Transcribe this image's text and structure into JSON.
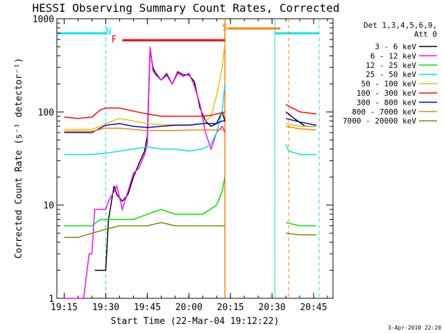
{
  "chart_data": {
    "type": "line",
    "title": "HESSI Observing Summary Count Rates, Corrected",
    "xlabel": "Start Time (22-Mar-04 19:12:22)",
    "ylabel": "Corrected Count Rate (s⁻¹ detector⁻¹)",
    "y_scale": "log",
    "ylim": [
      1,
      1000
    ],
    "xlim": [
      "19:12:22",
      "20:52:00"
    ],
    "x_tick_labels": [
      "19:15",
      "19:30",
      "19:45",
      "20:00",
      "20:15",
      "20:30",
      "20:45"
    ],
    "y_tick_labels": [
      "1",
      "10",
      "100",
      "1000"
    ],
    "legend_header": [
      "Det 1,3,4,5,6,9,",
      "Att 0"
    ],
    "legend_position": "right",
    "footer_date": "3-Apr-2010 22:20",
    "annotations": [
      {
        "text": "N",
        "x": "19:31",
        "color": "#00e5e5"
      },
      {
        "text": "F",
        "x": "19:33",
        "color": "#ff0000"
      },
      {
        "text": "S",
        "x": "20:13",
        "color": "#ff7f00"
      }
    ],
    "markers": {
      "night_solid": [
        [
          "19:12:22",
          "19:30"
        ],
        [
          "20:31",
          "20:47"
        ]
      ],
      "night_dashed": [
        "19:30",
        "20:47"
      ],
      "saa_solid": [
        [
          "20:14",
          "20:33"
        ]
      ],
      "saa_dashed": [
        "20:36"
      ],
      "flare_bar": [
        [
          "19:36",
          "20:13"
        ]
      ],
      "orange_vertical": [
        "20:13"
      ]
    },
    "series": [
      {
        "name": "3 - 6 keV",
        "color": "#000000",
        "x": [
          "19:26",
          "19:27",
          "19:28",
          "19:30",
          "19:31",
          "19:33",
          "19:34",
          "19:36",
          "19:38",
          "19:40",
          "19:42",
          "19:44",
          "19:45",
          "19:46",
          "19:47",
          "19:48",
          "19:50",
          "19:52",
          "19:54",
          "19:56",
          "19:58",
          "20:00",
          "20:02",
          "20:04",
          "20:06",
          "20:08",
          "20:10",
          "20:12",
          "20:13",
          "20:35",
          "20:38",
          "20:42",
          "20:46"
        ],
        "y": [
          2,
          2,
          2,
          2,
          7,
          16,
          13,
          11,
          13,
          20,
          28,
          38,
          55,
          480,
          300,
          260,
          220,
          250,
          200,
          270,
          250,
          250,
          210,
          110,
          80,
          70,
          75,
          100,
          80,
          100,
          85,
          70,
          70
        ]
      },
      {
        "name": "6 - 12 keV",
        "color": "#ff00ff",
        "x": [
          "19:15",
          "19:22",
          "19:24",
          "19:25",
          "19:26",
          "19:28",
          "19:30",
          "19:31",
          "19:33",
          "19:34",
          "19:36",
          "19:38",
          "19:40",
          "19:42",
          "19:44",
          "19:45",
          "19:46",
          "19:47",
          "19:48",
          "19:50",
          "19:52",
          "19:54",
          "19:56",
          "19:58",
          "20:00",
          "20:02",
          "20:04",
          "20:06",
          "20:08",
          "20:10",
          "20:12",
          "20:13"
        ],
        "y": [
          1,
          1,
          3,
          3,
          9,
          9,
          9,
          11,
          14,
          16,
          9,
          14,
          22,
          25,
          35,
          45,
          500,
          280,
          250,
          220,
          260,
          200,
          260,
          240,
          260,
          190,
          120,
          60,
          40,
          60,
          70,
          60
        ]
      },
      {
        "name": "12 - 25 keV",
        "color": "#00e000",
        "x": [
          "19:15",
          "19:20",
          "19:25",
          "19:28",
          "19:30",
          "19:32",
          "19:35",
          "19:40",
          "19:45",
          "19:50",
          "19:55",
          "20:00",
          "20:05",
          "20:10",
          "20:12",
          "20:13",
          "20:35",
          "20:40",
          "20:46"
        ],
        "y": [
          6,
          6,
          6,
          7,
          7,
          7,
          7,
          7,
          8,
          9,
          8,
          8,
          8,
          10,
          14,
          20,
          6.5,
          6,
          6
        ]
      },
      {
        "name": "25 - 50 keV",
        "color": "#00e5e5",
        "x": [
          "19:15",
          "19:20",
          "19:25",
          "19:30",
          "19:35",
          "19:40",
          "19:45",
          "19:50",
          "19:55",
          "20:00",
          "20:05",
          "20:08",
          "20:10",
          "20:12",
          "20:13",
          "20:35",
          "20:36",
          "20:40",
          "20:46"
        ],
        "y": [
          35,
          35,
          35,
          36,
          38,
          40,
          42,
          40,
          40,
          38,
          40,
          45,
          60,
          100,
          200,
          45,
          38,
          35,
          35
        ]
      },
      {
        "name": "50 - 100 keV",
        "color": "#e5c400",
        "x": [
          "19:15",
          "19:20",
          "19:25",
          "19:28",
          "19:30",
          "19:35",
          "19:40",
          "19:45",
          "19:50",
          "19:55",
          "20:00",
          "20:05",
          "20:08",
          "20:10",
          "20:12",
          "20:13",
          "20:35",
          "20:40",
          "20:46"
        ],
        "y": [
          65,
          65,
          65,
          70,
          75,
          85,
          80,
          75,
          73,
          73,
          73,
          75,
          90,
          150,
          300,
          550,
          75,
          70,
          70
        ]
      },
      {
        "name": "100 - 300 keV",
        "color": "#ff0000",
        "x": [
          "19:15",
          "19:20",
          "19:25",
          "19:28",
          "19:30",
          "19:35",
          "19:40",
          "19:45",
          "19:50",
          "19:55",
          "20:00",
          "20:05",
          "20:08",
          "20:10",
          "20:12",
          "20:13",
          "20:35",
          "20:40",
          "20:46"
        ],
        "y": [
          88,
          85,
          88,
          105,
          110,
          110,
          102,
          95,
          90,
          90,
          90,
          90,
          92,
          95,
          98,
          100,
          120,
          100,
          95
        ]
      },
      {
        "name": "300 - 800 keV",
        "color": "#0000e0",
        "x": [
          "19:15",
          "19:20",
          "19:25",
          "19:30",
          "19:35",
          "19:40",
          "19:45",
          "19:50",
          "19:55",
          "20:00",
          "20:05",
          "20:10",
          "20:12",
          "20:13",
          "20:35",
          "20:40",
          "20:46"
        ],
        "y": [
          60,
          60,
          60,
          72,
          75,
          70,
          68,
          70,
          72,
          72,
          75,
          75,
          80,
          80,
          85,
          78,
          72
        ]
      },
      {
        "name": "800 - 7000 keV",
        "color": "#ff7f00",
        "x": [
          "19:15",
          "19:20",
          "19:25",
          "19:30",
          "19:35",
          "19:40",
          "19:45",
          "19:50",
          "19:55",
          "20:00",
          "20:05",
          "20:10",
          "20:12",
          "20:13",
          "20:35",
          "20:40",
          "20:46"
        ],
        "y": [
          62,
          62,
          62,
          67,
          67,
          65,
          63,
          63,
          63,
          64,
          64,
          64,
          65,
          65,
          70,
          66,
          64
        ]
      },
      {
        "name": "7000 - 20000 keV",
        "color": "#808000",
        "x": [
          "19:15",
          "19:20",
          "19:25",
          "19:30",
          "19:35",
          "19:40",
          "19:45",
          "19:50",
          "19:55",
          "20:00",
          "20:05",
          "20:10",
          "20:12",
          "20:13",
          "20:35",
          "20:40",
          "20:46"
        ],
        "y": [
          4.5,
          4.5,
          5,
          5.5,
          6,
          6,
          6,
          6.5,
          6,
          6,
          6,
          6,
          6,
          6,
          5,
          4.8,
          4.8
        ]
      }
    ]
  }
}
